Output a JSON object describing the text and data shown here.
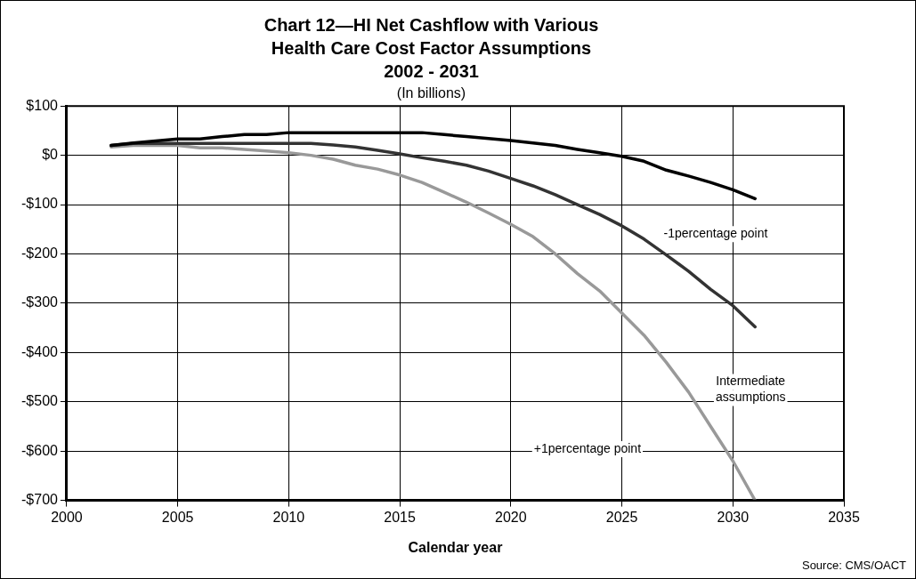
{
  "chart_data": {
    "type": "line",
    "title": "Chart 12—HI Net Cashflow with Various\nHealth Care Cost Factor Assumptions\n2002 - 2031",
    "subtitle": "(In billions)",
    "xlabel": "Calendar year",
    "x": [
      2002,
      2003,
      2004,
      2005,
      2006,
      2007,
      2008,
      2009,
      2010,
      2011,
      2012,
      2013,
      2014,
      2015,
      2016,
      2017,
      2018,
      2019,
      2020,
      2021,
      2022,
      2023,
      2024,
      2025,
      2026,
      2027,
      2028,
      2029,
      2030,
      2031
    ],
    "series": [
      {
        "color": "#000000",
        "values": [
          20,
          25,
          29,
          33,
          33,
          38,
          42,
          42,
          46,
          46,
          46,
          46,
          46,
          46,
          46,
          42,
          38,
          34,
          30,
          25,
          20,
          12,
          5,
          -2,
          -12,
          -30,
          -42,
          -55,
          -70,
          -88
        ]
      },
      {
        "color": "#333333",
        "values": [
          20,
          24,
          24,
          24,
          24,
          24,
          24,
          24,
          24,
          24,
          21,
          17,
          10,
          3,
          -5,
          -12,
          -20,
          -32,
          -47,
          -62,
          -80,
          -100,
          -120,
          -143,
          -170,
          -202,
          -235,
          -272,
          -305,
          -348
        ]
      },
      {
        "color": "#999999",
        "values": [
          17,
          20,
          20,
          20,
          15,
          15,
          12,
          9,
          5,
          0,
          -8,
          -20,
          -28,
          -40,
          -55,
          -75,
          -95,
          -117,
          -140,
          -165,
          -200,
          -240,
          -275,
          -320,
          -365,
          -420,
          -480,
          -550,
          -620,
          -700
        ]
      }
    ],
    "xlim": [
      2000,
      2035
    ],
    "xticks": [
      2000,
      2005,
      2010,
      2015,
      2020,
      2025,
      2030,
      2035
    ],
    "ylim": [
      -700,
      100
    ],
    "yticks": [
      {
        "value": -700,
        "label": "-$700"
      },
      {
        "value": -600,
        "label": "-$600"
      },
      {
        "value": -500,
        "label": "-$500"
      },
      {
        "value": -400,
        "label": "-$400"
      },
      {
        "value": -300,
        "label": "-$300"
      },
      {
        "value": -200,
        "label": "-$200"
      },
      {
        "value": -100,
        "label": "-$100"
      },
      {
        "value": 0,
        "label": "$0"
      },
      {
        "value": 100,
        "label": "$100"
      }
    ],
    "grid": true,
    "legend": false,
    "marker": "none",
    "line_style": "solid",
    "annotations": [
      "-1percentage point",
      "Intermediate\nassumptions",
      "+1percentage point",
      "Source: CMS/OACT"
    ]
  }
}
